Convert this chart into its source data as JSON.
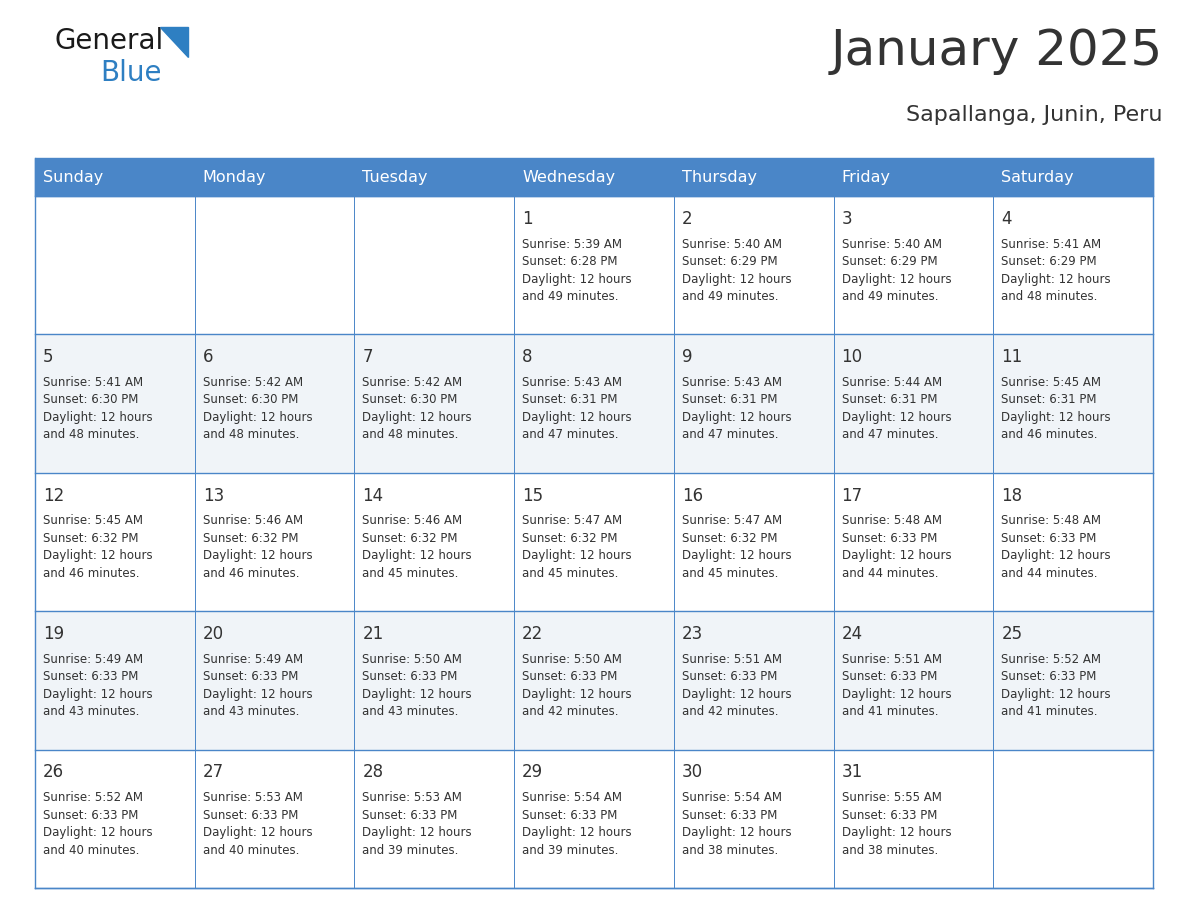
{
  "title": "January 2025",
  "subtitle": "Sapallanga, Junin, Peru",
  "header_color": "#4a86c8",
  "header_text_color": "#ffffff",
  "border_color": "#4a86c8",
  "text_color": "#333333",
  "days_of_week": [
    "Sunday",
    "Monday",
    "Tuesday",
    "Wednesday",
    "Thursday",
    "Friday",
    "Saturday"
  ],
  "calendar_data": [
    [
      {
        "day": "",
        "info": ""
      },
      {
        "day": "",
        "info": ""
      },
      {
        "day": "",
        "info": ""
      },
      {
        "day": "1",
        "info": "Sunrise: 5:39 AM\nSunset: 6:28 PM\nDaylight: 12 hours\nand 49 minutes."
      },
      {
        "day": "2",
        "info": "Sunrise: 5:40 AM\nSunset: 6:29 PM\nDaylight: 12 hours\nand 49 minutes."
      },
      {
        "day": "3",
        "info": "Sunrise: 5:40 AM\nSunset: 6:29 PM\nDaylight: 12 hours\nand 49 minutes."
      },
      {
        "day": "4",
        "info": "Sunrise: 5:41 AM\nSunset: 6:29 PM\nDaylight: 12 hours\nand 48 minutes."
      }
    ],
    [
      {
        "day": "5",
        "info": "Sunrise: 5:41 AM\nSunset: 6:30 PM\nDaylight: 12 hours\nand 48 minutes."
      },
      {
        "day": "6",
        "info": "Sunrise: 5:42 AM\nSunset: 6:30 PM\nDaylight: 12 hours\nand 48 minutes."
      },
      {
        "day": "7",
        "info": "Sunrise: 5:42 AM\nSunset: 6:30 PM\nDaylight: 12 hours\nand 48 minutes."
      },
      {
        "day": "8",
        "info": "Sunrise: 5:43 AM\nSunset: 6:31 PM\nDaylight: 12 hours\nand 47 minutes."
      },
      {
        "day": "9",
        "info": "Sunrise: 5:43 AM\nSunset: 6:31 PM\nDaylight: 12 hours\nand 47 minutes."
      },
      {
        "day": "10",
        "info": "Sunrise: 5:44 AM\nSunset: 6:31 PM\nDaylight: 12 hours\nand 47 minutes."
      },
      {
        "day": "11",
        "info": "Sunrise: 5:45 AM\nSunset: 6:31 PM\nDaylight: 12 hours\nand 46 minutes."
      }
    ],
    [
      {
        "day": "12",
        "info": "Sunrise: 5:45 AM\nSunset: 6:32 PM\nDaylight: 12 hours\nand 46 minutes."
      },
      {
        "day": "13",
        "info": "Sunrise: 5:46 AM\nSunset: 6:32 PM\nDaylight: 12 hours\nand 46 minutes."
      },
      {
        "day": "14",
        "info": "Sunrise: 5:46 AM\nSunset: 6:32 PM\nDaylight: 12 hours\nand 45 minutes."
      },
      {
        "day": "15",
        "info": "Sunrise: 5:47 AM\nSunset: 6:32 PM\nDaylight: 12 hours\nand 45 minutes."
      },
      {
        "day": "16",
        "info": "Sunrise: 5:47 AM\nSunset: 6:32 PM\nDaylight: 12 hours\nand 45 minutes."
      },
      {
        "day": "17",
        "info": "Sunrise: 5:48 AM\nSunset: 6:33 PM\nDaylight: 12 hours\nand 44 minutes."
      },
      {
        "day": "18",
        "info": "Sunrise: 5:48 AM\nSunset: 6:33 PM\nDaylight: 12 hours\nand 44 minutes."
      }
    ],
    [
      {
        "day": "19",
        "info": "Sunrise: 5:49 AM\nSunset: 6:33 PM\nDaylight: 12 hours\nand 43 minutes."
      },
      {
        "day": "20",
        "info": "Sunrise: 5:49 AM\nSunset: 6:33 PM\nDaylight: 12 hours\nand 43 minutes."
      },
      {
        "day": "21",
        "info": "Sunrise: 5:50 AM\nSunset: 6:33 PM\nDaylight: 12 hours\nand 43 minutes."
      },
      {
        "day": "22",
        "info": "Sunrise: 5:50 AM\nSunset: 6:33 PM\nDaylight: 12 hours\nand 42 minutes."
      },
      {
        "day": "23",
        "info": "Sunrise: 5:51 AM\nSunset: 6:33 PM\nDaylight: 12 hours\nand 42 minutes."
      },
      {
        "day": "24",
        "info": "Sunrise: 5:51 AM\nSunset: 6:33 PM\nDaylight: 12 hours\nand 41 minutes."
      },
      {
        "day": "25",
        "info": "Sunrise: 5:52 AM\nSunset: 6:33 PM\nDaylight: 12 hours\nand 41 minutes."
      }
    ],
    [
      {
        "day": "26",
        "info": "Sunrise: 5:52 AM\nSunset: 6:33 PM\nDaylight: 12 hours\nand 40 minutes."
      },
      {
        "day": "27",
        "info": "Sunrise: 5:53 AM\nSunset: 6:33 PM\nDaylight: 12 hours\nand 40 minutes."
      },
      {
        "day": "28",
        "info": "Sunrise: 5:53 AM\nSunset: 6:33 PM\nDaylight: 12 hours\nand 39 minutes."
      },
      {
        "day": "29",
        "info": "Sunrise: 5:54 AM\nSunset: 6:33 PM\nDaylight: 12 hours\nand 39 minutes."
      },
      {
        "day": "30",
        "info": "Sunrise: 5:54 AM\nSunset: 6:33 PM\nDaylight: 12 hours\nand 38 minutes."
      },
      {
        "day": "31",
        "info": "Sunrise: 5:55 AM\nSunset: 6:33 PM\nDaylight: 12 hours\nand 38 minutes."
      },
      {
        "day": "",
        "info": ""
      }
    ]
  ],
  "logo_color_general": "#1a1a1a",
  "logo_color_blue": "#2e7fc2",
  "logo_triangle_color": "#2e7fc2",
  "fig_width": 11.88,
  "fig_height": 9.18,
  "dpi": 100
}
